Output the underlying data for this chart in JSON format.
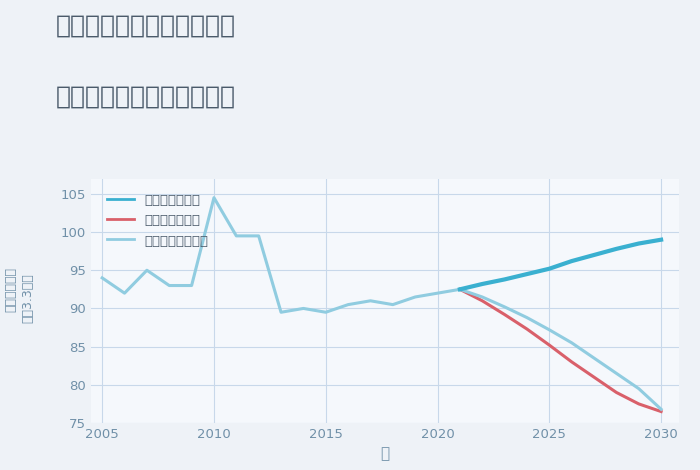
{
  "title_line1": "千葉県野田市山崎梅の台の",
  "title_line2": "中古マンションの価格推移",
  "xlabel": "年",
  "ylabel_top": "単価（万円）",
  "ylabel_bottom": "坪（3.3㎡）",
  "xlim": [
    2004.5,
    2030.8
  ],
  "ylim": [
    75,
    107
  ],
  "yticks": [
    75,
    80,
    85,
    90,
    95,
    100,
    105
  ],
  "xticks": [
    2005,
    2010,
    2015,
    2020,
    2025,
    2030
  ],
  "bg_color": "#eef2f7",
  "plot_bg_color": "#f5f8fc",
  "grid_color": "#c8d8ea",
  "good_color": "#3ab0d0",
  "bad_color": "#d9606a",
  "normal_color": "#90cce0",
  "good_label": "グッドシナリオ",
  "bad_label": "バッドシナリオ",
  "normal_label": "ノーマルシナリオ",
  "history_years": [
    2005,
    2006,
    2007,
    2008,
    2009,
    2010,
    2011,
    2012,
    2013,
    2014,
    2015,
    2016,
    2017,
    2018,
    2019,
    2020,
    2021
  ],
  "history_values": [
    94.0,
    92.0,
    95.0,
    93.0,
    93.0,
    104.5,
    99.5,
    99.5,
    89.5,
    90.0,
    89.5,
    90.5,
    91.0,
    90.5,
    91.5,
    92.0,
    92.5
  ],
  "good_years": [
    2021,
    2022,
    2023,
    2024,
    2025,
    2026,
    2027,
    2028,
    2029,
    2030
  ],
  "good_values": [
    92.5,
    93.2,
    93.8,
    94.5,
    95.2,
    96.2,
    97.0,
    97.8,
    98.5,
    99.0
  ],
  "bad_years": [
    2021,
    2022,
    2023,
    2024,
    2025,
    2026,
    2027,
    2028,
    2029,
    2030
  ],
  "bad_values": [
    92.5,
    91.0,
    89.2,
    87.3,
    85.2,
    83.0,
    81.0,
    79.0,
    77.5,
    76.5
  ],
  "normal_years": [
    2021,
    2022,
    2023,
    2024,
    2025,
    2026,
    2027,
    2028,
    2029,
    2030
  ],
  "normal_values": [
    92.5,
    91.5,
    90.2,
    88.8,
    87.2,
    85.5,
    83.5,
    81.5,
    79.5,
    76.8
  ],
  "title_color": "#4a5a6a",
  "title_fontsize": 18,
  "axis_label_color": "#7090a8",
  "tick_color": "#7090a8",
  "line_width": 2.2
}
